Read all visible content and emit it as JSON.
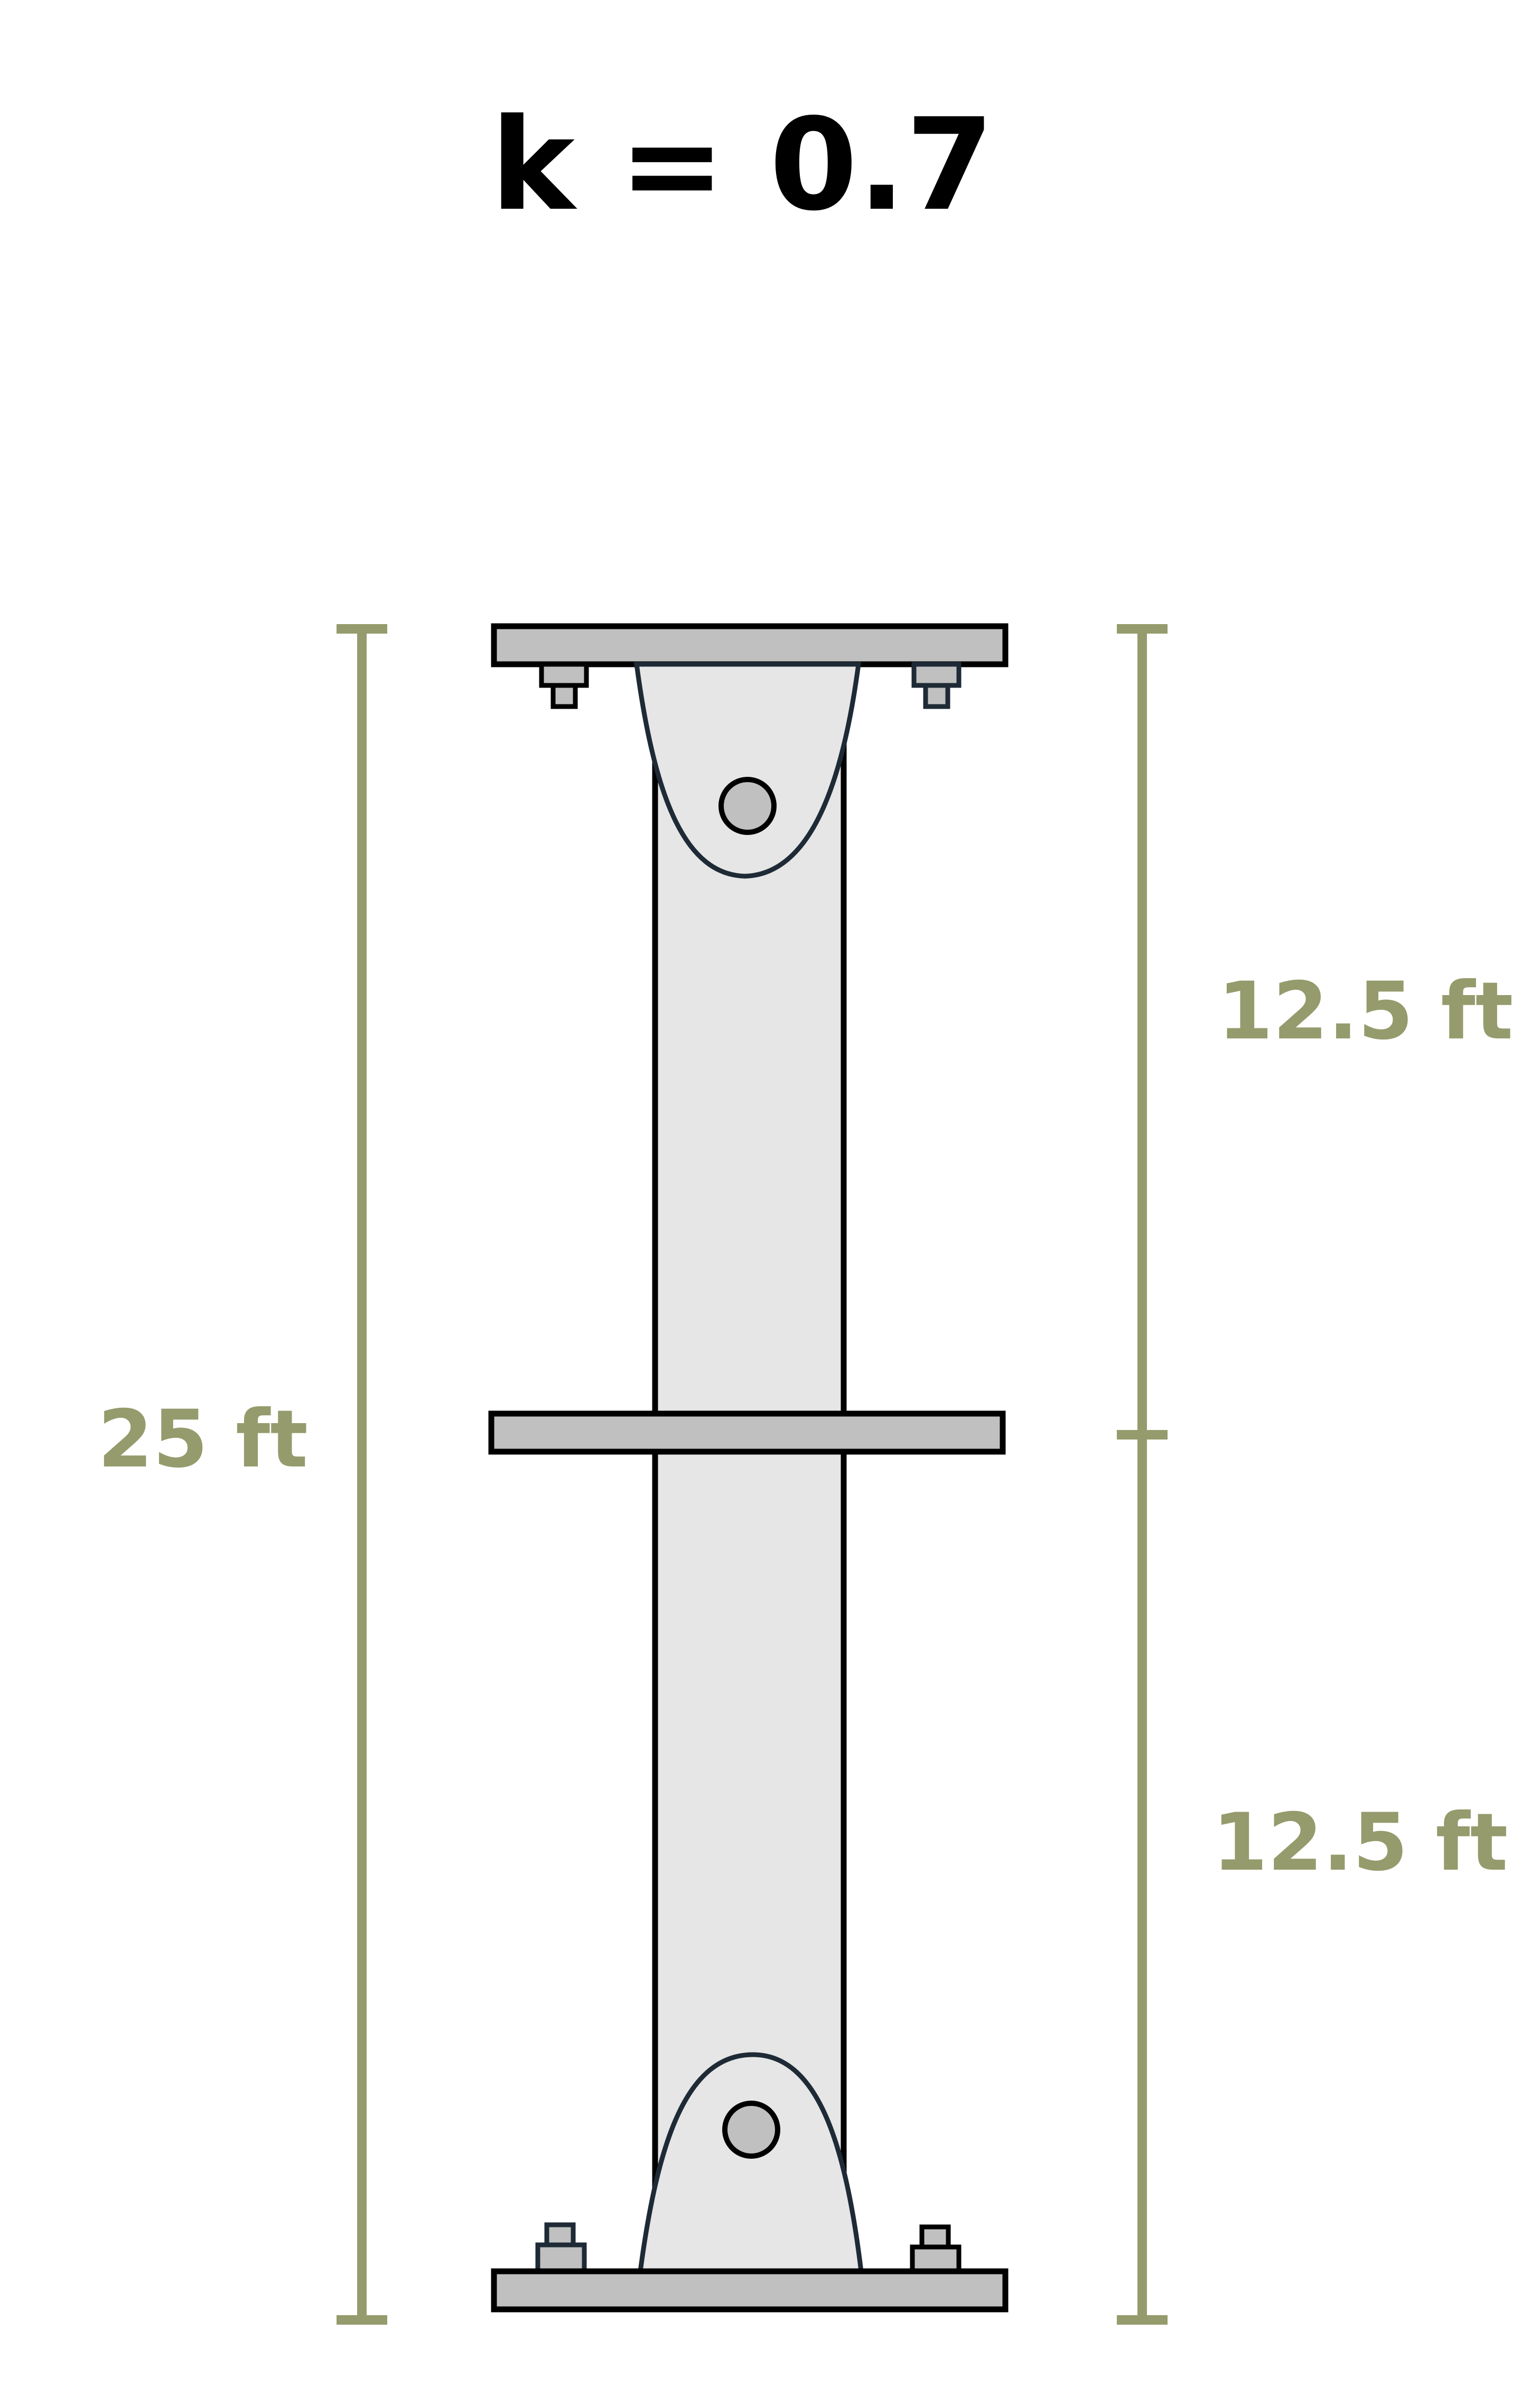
{
  "title": "k = 0.7",
  "dimensions": {
    "total_length": "25 ft",
    "upper_segment": "12.5 ft",
    "lower_segment": "12.5 ft"
  },
  "colors": {
    "dimension": "#959B6C",
    "column_fill": "#E6E6E6",
    "plate_fill": "#C0C0C0",
    "outline": "#000000",
    "gusset_outline": "#1E2A35"
  },
  "icons": {
    "top_support": "pinned-plate-icon",
    "bottom_support": "pinned-plate-icon",
    "mid_brace": "brace-plate-icon",
    "bolts": "bolt-icon"
  }
}
